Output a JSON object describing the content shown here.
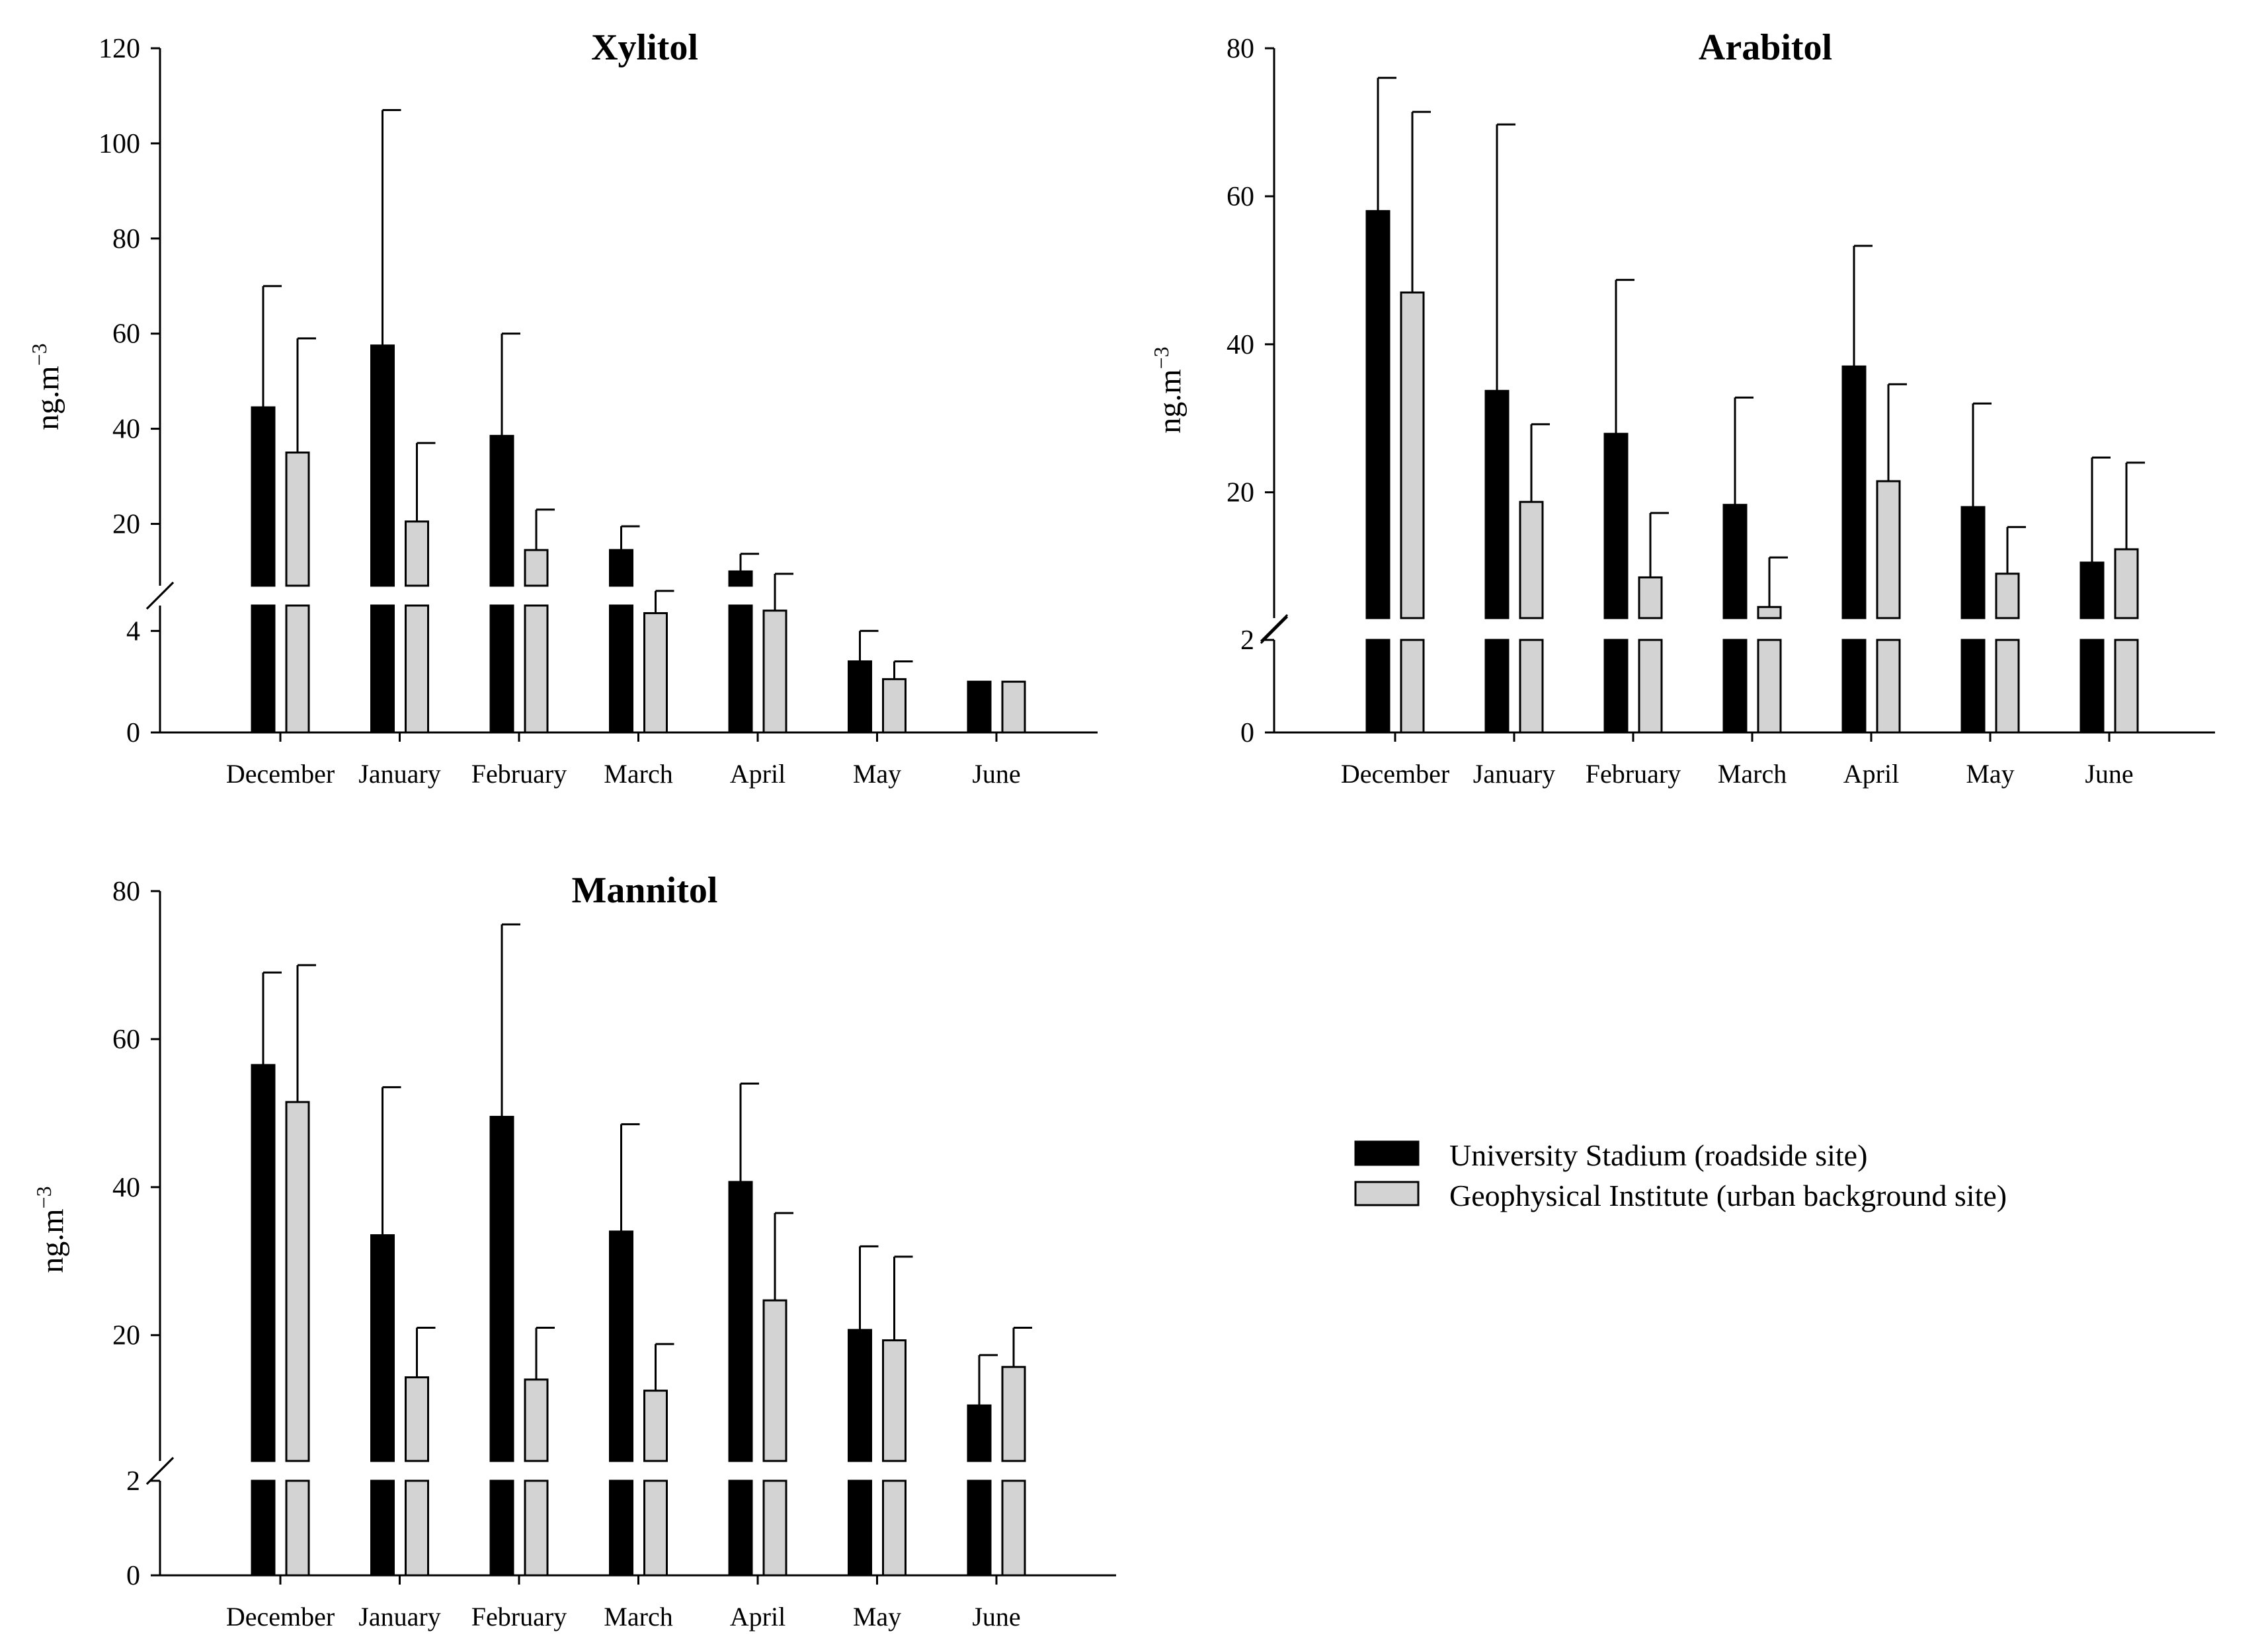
{
  "colors": {
    "university": "#000000",
    "geophysical": "#d3d3d3",
    "outline": "#000000"
  },
  "legend": {
    "items": [
      {
        "label": "University Stadium (roadside site)",
        "color": "#000000"
      },
      {
        "label": "Geophysical Institute (urban background site)",
        "color": "#d3d3d3"
      }
    ]
  },
  "chart_data": [
    {
      "type": "bar",
      "title": "Xylitol",
      "ylabel": "ng.m",
      "ylabel_sup": "−3",
      "categories": [
        "December",
        "January",
        "February",
        "March",
        "April",
        "May",
        "June"
      ],
      "axis_break": {
        "lower": [
          0,
          5
        ],
        "upper": [
          7,
          120
        ]
      },
      "ticks_lower": [
        0,
        4
      ],
      "ticks_upper": [
        20,
        40,
        60,
        80,
        100,
        120
      ],
      "series": [
        {
          "name": "University Stadium (roadside site)",
          "values": [
            44.5,
            57.5,
            38.5,
            14.5,
            10,
            2.8,
            2.0
          ],
          "errors": [
            70,
            107,
            60,
            19.5,
            13.7,
            4.0,
            null
          ]
        },
        {
          "name": "Geophysical Institute (urban background site)",
          "values": [
            35,
            20.5,
            14.5,
            4.7,
            4.8,
            2.1,
            2.0
          ],
          "errors": [
            59,
            37,
            23,
            5.9,
            9.5,
            2.8,
            null
          ]
        }
      ]
    },
    {
      "type": "bar",
      "title": "Arabitol",
      "ylabel": "ng.m",
      "ylabel_sup": "−3",
      "categories": [
        "December",
        "January",
        "February",
        "March",
        "April",
        "May",
        "June"
      ],
      "axis_break": {
        "lower": [
          0,
          2
        ],
        "upper": [
          3,
          80
        ]
      },
      "ticks_lower": [
        0,
        2
      ],
      "ticks_upper": [
        20,
        40,
        60,
        80
      ],
      "series": [
        {
          "name": "University Stadium (roadside site)",
          "values": [
            58,
            33.7,
            27.9,
            18.3,
            37,
            18,
            10.5
          ],
          "errors": [
            76,
            69.7,
            48.7,
            32.8,
            53.3,
            32,
            24.7
          ]
        },
        {
          "name": "Geophysical Institute (urban background site)",
          "values": [
            47,
            18.7,
            8.5,
            4.5,
            21.5,
            9,
            12.3
          ],
          "errors": [
            71.4,
            29.2,
            17.2,
            11.2,
            34.6,
            15.3,
            24
          ]
        }
      ]
    },
    {
      "type": "bar",
      "title": "Mannitol",
      "ylabel": "ng.m",
      "ylabel_sup": "−3",
      "categories": [
        "December",
        "January",
        "February",
        "March",
        "April",
        "May",
        "June"
      ],
      "axis_break": {
        "lower": [
          0,
          2
        ],
        "upper": [
          3,
          80
        ]
      },
      "ticks_lower": [
        0,
        2
      ],
      "ticks_upper": [
        20,
        40,
        60,
        80
      ],
      "series": [
        {
          "name": "University Stadium (roadside site)",
          "values": [
            56.5,
            33.5,
            49.5,
            34,
            40.7,
            20.7,
            10.5
          ],
          "errors": [
            69,
            53.5,
            75.5,
            48.5,
            54,
            32,
            17.3
          ]
        },
        {
          "name": "Geophysical Institute (urban background site)",
          "values": [
            51.5,
            14.3,
            14,
            12.5,
            24.7,
            19.3,
            15.7
          ],
          "errors": [
            70,
            21,
            21,
            18.8,
            36.5,
            30.6,
            21
          ]
        }
      ]
    }
  ]
}
